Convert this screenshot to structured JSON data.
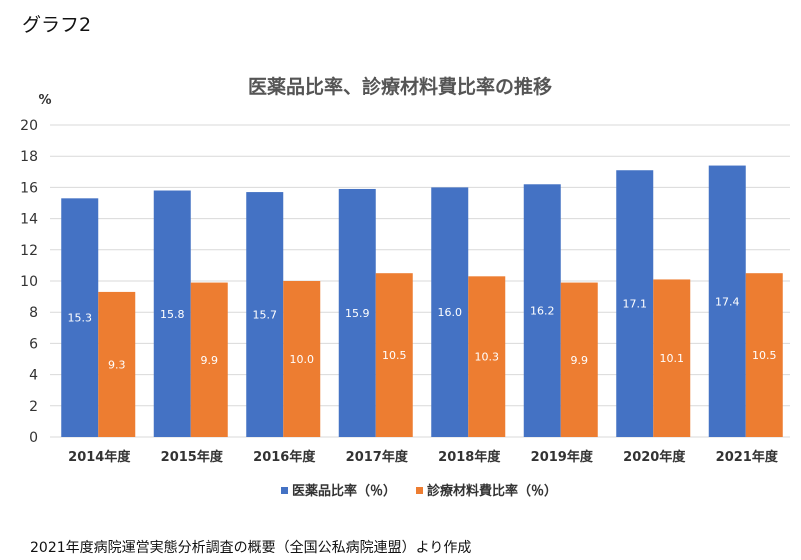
{
  "figure_label": "グラフ2",
  "source_note": "2021年度病院運営実態分析調査の概要（全国公私病院連盟）より作成",
  "colors": {
    "series1": "#4472C4",
    "series2": "#ED7D31",
    "grid": "#D9D9D9"
  },
  "chart_data": {
    "type": "bar",
    "title": "医薬品比率、診療材料費比率の推移",
    "ylabel": "%",
    "xlabel": "",
    "ylim": [
      0,
      20
    ],
    "yticks": [
      0,
      2,
      4,
      6,
      8,
      10,
      12,
      14,
      16,
      18,
      20
    ],
    "grid": true,
    "legend": "bottom",
    "categories": [
      "2014年度",
      "2015年度",
      "2016年度",
      "2017年度",
      "2018年度",
      "2019年度",
      "2020年度",
      "2021年度"
    ],
    "series": [
      {
        "name": "医薬品比率（％）",
        "values": [
          15.3,
          15.8,
          15.7,
          15.9,
          16.0,
          16.2,
          17.1,
          17.4
        ]
      },
      {
        "name": "診療材料費比率（％）",
        "values": [
          9.3,
          9.9,
          10.0,
          10.5,
          10.3,
          9.9,
          10.1,
          10.5
        ]
      }
    ]
  }
}
